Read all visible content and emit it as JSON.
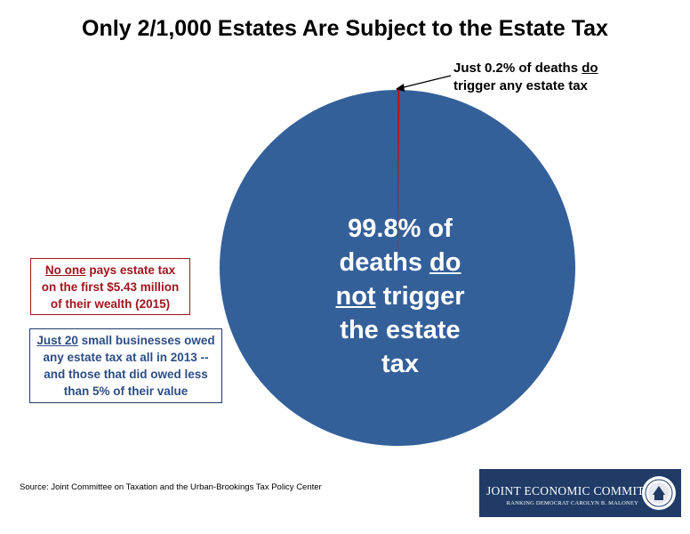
{
  "title": "Only 2/1,000 Estates Are Subject to the Estate Tax",
  "callout": {
    "line1_pre": "Just 0.2% of deaths ",
    "line1_u": "do",
    "line2": "trigger any estate tax"
  },
  "center_label": {
    "l1": "99.8% of",
    "l2_pre": "deaths ",
    "l2_u": "do",
    "l3_u": "not",
    "l3_post": " trigger",
    "l4": "the estate",
    "l5": "tax"
  },
  "box_red": {
    "u": "No one",
    "rest": " pays estate tax",
    "l2": "on the first $5.43 million",
    "l3": "of their wealth (2015)"
  },
  "box_blue": {
    "u": "Just 20",
    "rest": " small businesses owed",
    "l2": "any estate tax at all in 2013 --",
    "l3": "and those that did owed less",
    "l4": "than 5% of their value"
  },
  "source": "Source: Joint Committee on Taxation and the Urban-Brookings Tax Policy Center",
  "logo": {
    "name": "JOINT ECONOMIC COMMITTEE",
    "sub": "RANKING DEMOCRAT CAROLYN B. MALONEY"
  },
  "colors": {
    "main_slice": "#34609a",
    "small_slice": "#b3181e",
    "logo_bg": "#1f3b66"
  },
  "chart_data": {
    "type": "pie",
    "title": "Only 2/1,000 Estates Are Subject to the Estate Tax",
    "slices": [
      {
        "label": "Just 0.2% of deaths do trigger any estate tax",
        "value": 0.2,
        "color": "#b3181e"
      },
      {
        "label": "99.8% of deaths do not trigger the estate tax",
        "value": 99.8,
        "color": "#34609a"
      }
    ]
  }
}
